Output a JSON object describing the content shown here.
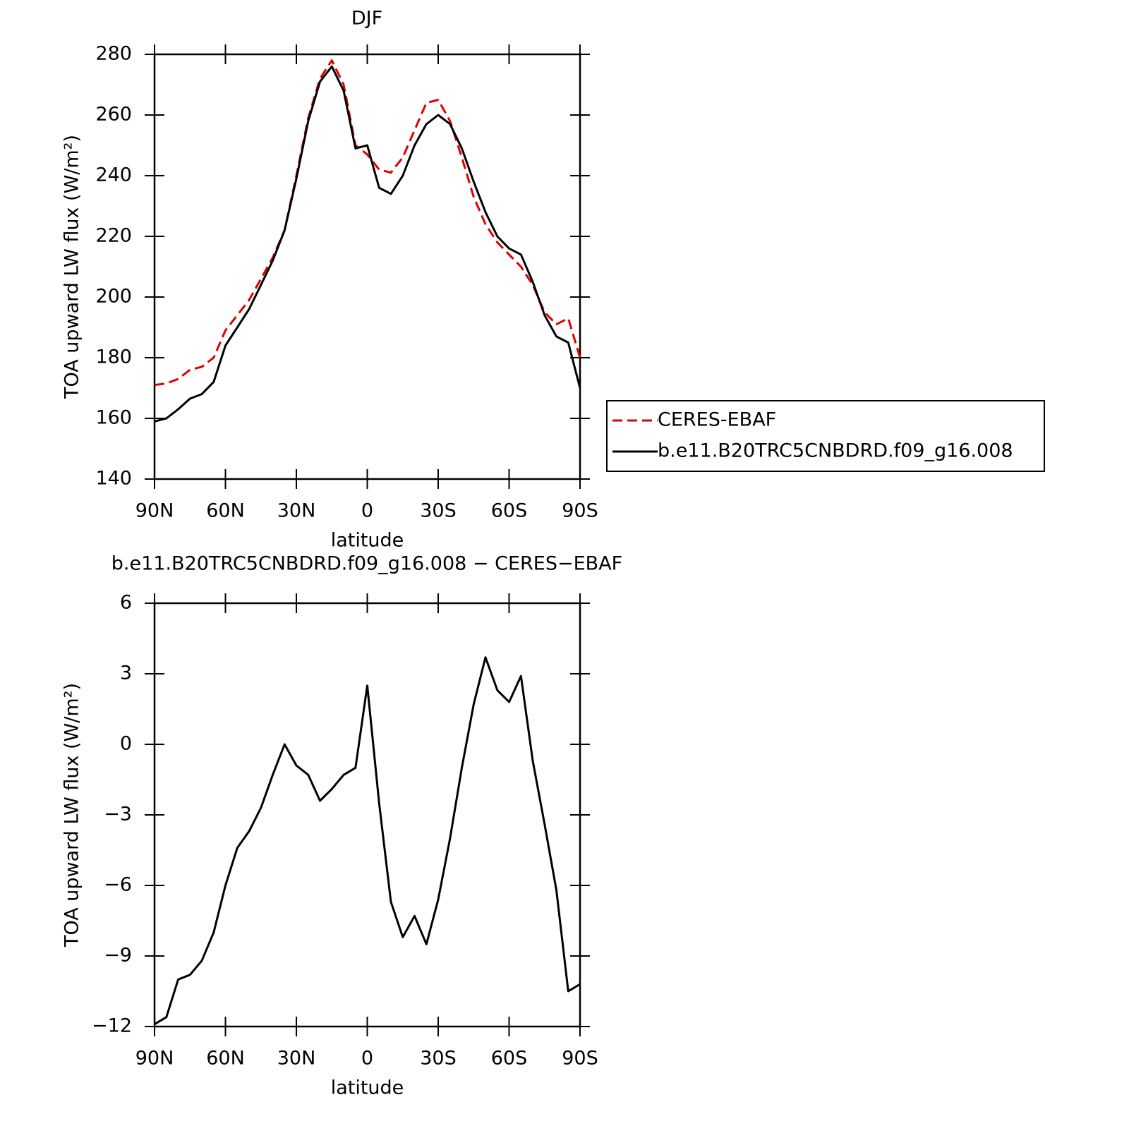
{
  "chart_data": [
    {
      "type": "line",
      "title": "DJF",
      "x_label": "latitude",
      "y_label": "TOA upward LW flux (W/m²)",
      "x": [
        90,
        85,
        80,
        75,
        70,
        65,
        60,
        55,
        50,
        45,
        40,
        35,
        30,
        25,
        20,
        15,
        10,
        5,
        0,
        -5,
        -10,
        -15,
        -20,
        -25,
        -30,
        -35,
        -40,
        -45,
        -50,
        -55,
        -60,
        -65,
        -70,
        -75,
        -80,
        -85,
        -90
      ],
      "series": [
        {
          "name": "CERES-EBAF",
          "color": "#e00000",
          "dashed": true,
          "values": [
            171,
            171.5,
            173,
            176,
            177,
            180,
            189,
            194,
            199,
            206,
            213,
            222,
            240,
            259,
            272,
            278,
            270,
            250,
            247,
            242,
            241,
            246,
            255,
            264,
            265,
            258,
            246,
            233,
            224,
            218,
            214,
            210,
            204,
            195,
            191,
            193,
            180
          ]
        },
        {
          "name": "b.e11.B20TRC5CNBDRD.f09_g16.008",
          "color": "#000000",
          "dashed": false,
          "values": [
            159,
            160,
            163,
            166.5,
            168,
            172,
            184,
            190,
            196,
            204,
            212,
            222,
            239,
            258,
            271,
            276,
            268,
            249,
            250,
            236,
            234,
            240,
            250,
            257,
            260,
            257,
            249,
            238,
            228,
            220,
            216,
            214,
            205,
            194,
            187,
            185,
            170
          ]
        }
      ],
      "xlim": [
        90,
        -90
      ],
      "xticks": [
        {
          "value": 90,
          "label": "90N"
        },
        {
          "value": 60,
          "label": "60N"
        },
        {
          "value": 30,
          "label": "30N"
        },
        0,
        {
          "value": -30,
          "label": "30S"
        },
        {
          "value": -60,
          "label": "60S"
        },
        {
          "value": -90,
          "label": "90S"
        }
      ],
      "ylim": [
        140,
        280
      ],
      "yticks": [
        140,
        160,
        180,
        200,
        220,
        240,
        260,
        280
      ],
      "legend": "right"
    },
    {
      "type": "line",
      "title": "b.e11.B20TRC5CNBDRD.f09_g16.008 − CERES−EBAF",
      "x_label": "latitude",
      "y_label": "TOA upward LW flux (W/m²)",
      "x": [
        90,
        85,
        80,
        75,
        70,
        65,
        60,
        55,
        50,
        45,
        40,
        35,
        30,
        25,
        20,
        15,
        10,
        5,
        0,
        -5,
        -10,
        -15,
        -20,
        -25,
        -30,
        -35,
        -40,
        -45,
        -50,
        -55,
        -60,
        -65,
        -70,
        -75,
        -80,
        -85,
        -90
      ],
      "series": [
        {
          "color": "#000000",
          "dashed": false,
          "values": [
            -11.9,
            -11.6,
            -10,
            -9.8,
            -9.2,
            -8,
            -6,
            -4.4,
            -3.7,
            -2.7,
            -1.3,
            0,
            -0.9,
            -1.3,
            -2.4,
            -1.9,
            -1.3,
            -1,
            2.5,
            -2.5,
            -6.7,
            -8.2,
            -7.3,
            -8.5,
            -6.6,
            -4,
            -1,
            1.7,
            3.7,
            2.3,
            1.8,
            2.9,
            -0.7,
            -3.4,
            -6.2,
            -10.5,
            -10.2
          ]
        }
      ],
      "xlim": [
        90,
        -90
      ],
      "xticks": [
        {
          "value": 90,
          "label": "90N"
        },
        {
          "value": 60,
          "label": "60N"
        },
        {
          "value": 30,
          "label": "30N"
        },
        0,
        {
          "value": -30,
          "label": "30S"
        },
        {
          "value": -60,
          "label": "60S"
        },
        {
          "value": -90,
          "label": "90S"
        }
      ],
      "ylim": [
        -12,
        6
      ],
      "yticks": [
        {
          "value": -12,
          "label": "−12"
        },
        {
          "value": -9,
          "label": "−9"
        },
        {
          "value": -6,
          "label": "−6"
        },
        {
          "value": -3,
          "label": "−3"
        },
        0,
        3,
        6
      ]
    }
  ]
}
